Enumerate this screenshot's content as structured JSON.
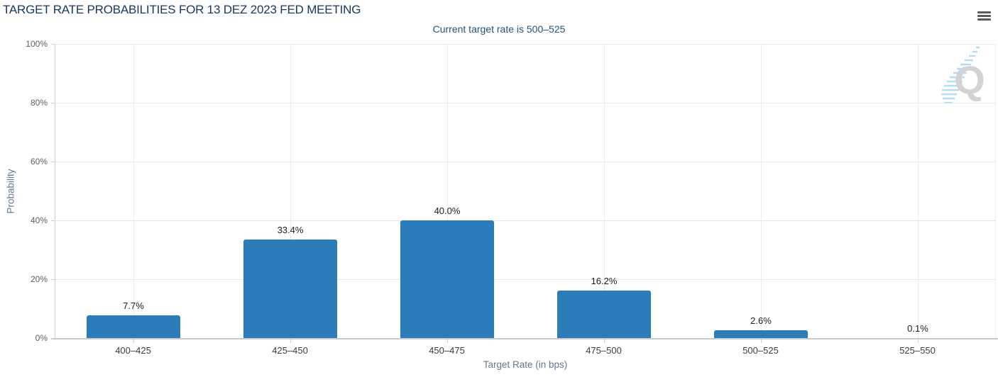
{
  "header": {
    "title": "TARGET RATE PROBABILITIES FOR 13 DEZ 2023 FED MEETING",
    "subtitle": "Current target rate is 500–525",
    "menu_icon": "hamburger-menu-icon"
  },
  "chart_data": {
    "type": "bar",
    "title": "TARGET RATE PROBABILITIES FOR 13 DEZ 2023 FED MEETING",
    "subtitle": "Current target rate is 500–525",
    "categories": [
      "400–425",
      "425–450",
      "450–475",
      "475–500",
      "500–525",
      "525–550"
    ],
    "values": [
      7.7,
      33.4,
      40.0,
      16.2,
      2.6,
      0.1
    ],
    "value_labels": [
      "7.7%",
      "33.4%",
      "40.0%",
      "16.2%",
      "2.6%",
      "0.1%"
    ],
    "xlabel": "Target Rate (in bps)",
    "ylabel": "Probability",
    "ylim": [
      0,
      100
    ],
    "yticks": [
      0,
      20,
      40,
      60,
      80,
      100
    ],
    "ytick_labels": [
      "0%",
      "20%",
      "40%",
      "60%",
      "80%",
      "100%"
    ],
    "grid": true,
    "legend": "none",
    "bar_color": "#2b7cb8",
    "watermark_letter": "Q"
  },
  "colors": {
    "title": "#17375e",
    "subtitle": "#24527b",
    "bar": "#2b7cb8",
    "axis_title": "#66788c",
    "ytick_label": "#5f5f5f",
    "category_label": "#3b3b3b",
    "value_label": "#1c1c1c",
    "gridline": "#e6e6e6",
    "axis_line": "#c7cacd",
    "watermark_gray": "#d3d3d3",
    "watermark_blue": "#a8d7f0"
  }
}
